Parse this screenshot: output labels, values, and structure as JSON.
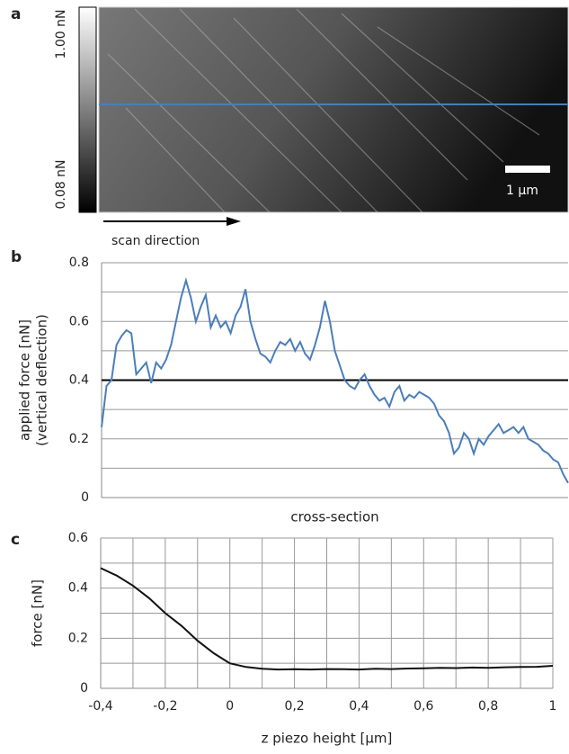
{
  "panel_labels": [
    "a",
    "b",
    "c"
  ],
  "image_panel": {
    "colorbar_max": "1.00 nN",
    "colorbar_min": "0.08 nN",
    "scale_bar": "1 µm",
    "scan_direction": "scan direction"
  },
  "chart_data": [
    {
      "type": "line",
      "xlabel": "cross-section",
      "ylabel": [
        "applied force [nN]",
        "(vertical deflection)"
      ],
      "color": "#4a7ebb",
      "values": [
        0.24,
        0.38,
        0.4,
        0.52,
        0.55,
        0.57,
        0.56,
        0.42,
        0.44,
        0.46,
        0.39,
        0.46,
        0.44,
        0.47,
        0.52,
        0.6,
        0.68,
        0.74,
        0.68,
        0.6,
        0.65,
        0.69,
        0.58,
        0.62,
        0.58,
        0.6,
        0.56,
        0.62,
        0.65,
        0.71,
        0.6,
        0.54,
        0.49,
        0.48,
        0.46,
        0.5,
        0.53,
        0.52,
        0.54,
        0.5,
        0.53,
        0.49,
        0.47,
        0.52,
        0.58,
        0.67,
        0.6,
        0.5,
        0.45,
        0.4,
        0.38,
        0.37,
        0.4,
        0.42,
        0.38,
        0.35,
        0.33,
        0.34,
        0.31,
        0.36,
        0.38,
        0.33,
        0.35,
        0.34,
        0.36,
        0.35,
        0.34,
        0.32,
        0.28,
        0.26,
        0.22,
        0.15,
        0.17,
        0.22,
        0.2,
        0.15,
        0.2,
        0.18,
        0.21,
        0.23,
        0.25,
        0.22,
        0.23,
        0.24,
        0.22,
        0.24,
        0.2,
        0.19,
        0.18,
        0.16,
        0.15,
        0.13,
        0.12,
        0.08,
        0.05
      ],
      "ylim": [
        0,
        0.8
      ],
      "yticks": [
        0,
        0.2,
        0.4,
        0.6,
        0.8
      ],
      "minor_yticks": [
        0.1,
        0.3,
        0.5,
        0.7
      ],
      "reference_line": 0.4,
      "grid": true
    },
    {
      "type": "line",
      "xlabel": "z piezo height [µm]",
      "ylabel": [
        "force [nN]"
      ],
      "color": "#111111",
      "x": [
        -0.4,
        -0.35,
        -0.3,
        -0.25,
        -0.2,
        -0.15,
        -0.1,
        -0.05,
        0,
        0.05,
        0.1,
        0.15,
        0.2,
        0.25,
        0.3,
        0.35,
        0.4,
        0.45,
        0.5,
        0.55,
        0.6,
        0.65,
        0.7,
        0.75,
        0.8,
        0.85,
        0.9,
        0.95,
        1
      ],
      "values": [
        0.48,
        0.45,
        0.41,
        0.36,
        0.3,
        0.25,
        0.19,
        0.14,
        0.1,
        0.085,
        0.078,
        0.075,
        0.076,
        0.075,
        0.077,
        0.076,
        0.075,
        0.078,
        0.077,
        0.079,
        0.08,
        0.082,
        0.081,
        0.083,
        0.082,
        0.084,
        0.085,
        0.086,
        0.09
      ],
      "xlim": [
        -0.4,
        1
      ],
      "xticks": [
        {
          "value": -0.4,
          "label": "-0,4"
        },
        {
          "value": -0.2,
          "label": "-0,2"
        },
        0,
        {
          "value": 0.2,
          "label": "0,2"
        },
        {
          "value": 0.4,
          "label": "0,4"
        },
        {
          "value": 0.6,
          "label": "0,6"
        },
        {
          "value": 0.8,
          "label": "0,8"
        },
        1
      ],
      "minor_xticks": [
        -0.3,
        -0.1,
        0.1,
        0.3,
        0.5,
        0.7,
        0.9
      ],
      "ylim": [
        0,
        0.6
      ],
      "yticks": [
        0,
        0.2,
        0.4,
        0.6
      ],
      "minor_yticks": [
        0.1,
        0.3,
        0.5
      ],
      "grid": true
    }
  ]
}
